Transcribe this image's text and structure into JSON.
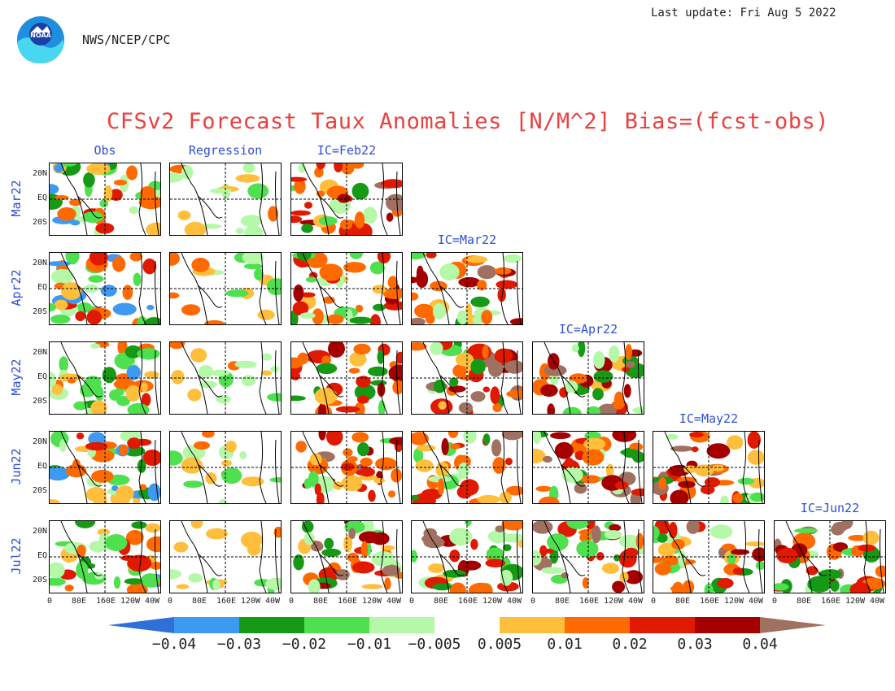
{
  "header": {
    "agency": "NWS/NCEP/CPC",
    "last_update": "Last update: Fri Aug  5 2022",
    "logo_text": "NOAA"
  },
  "chart_data": {
    "type": "heatmap",
    "title": "CFSv2 Forecast Taux Anomalies [N/M^2] Bias=(fcst-obs)",
    "column_headers": [
      "Obs",
      "Regression"
    ],
    "rows": [
      {
        "label": "Mar22",
        "ic_label": "IC=Feb22",
        "forecast_panels": 1
      },
      {
        "label": "Apr22",
        "ic_label": "IC=Mar22",
        "forecast_panels": 2
      },
      {
        "label": "May22",
        "ic_label": "IC=Apr22",
        "forecast_panels": 3
      },
      {
        "label": "Jun22",
        "ic_label": "IC=May22",
        "forecast_panels": 4
      },
      {
        "label": "Jul22",
        "ic_label": "IC=Jun22",
        "forecast_panels": 5
      }
    ],
    "lat_ticks": [
      "20N",
      "EQ",
      "20S"
    ],
    "lon_ticks": [
      "0",
      "80E",
      "160E",
      "120W",
      "40W"
    ],
    "colorbar": {
      "colors": [
        "#2f6fd8",
        "#3e9af0",
        "#169a16",
        "#4fe04f",
        "#b5f8a8",
        "#ffffff",
        "#ffbf3c",
        "#ff6a00",
        "#e01a00",
        "#a50000",
        "#a07060"
      ],
      "labels": [
        "−0.04",
        "−0.03",
        "−0.02",
        "−0.01",
        "−0.005",
        "0.005",
        "0.01",
        "0.02",
        "0.03",
        "0.04"
      ],
      "extend": "both"
    }
  }
}
